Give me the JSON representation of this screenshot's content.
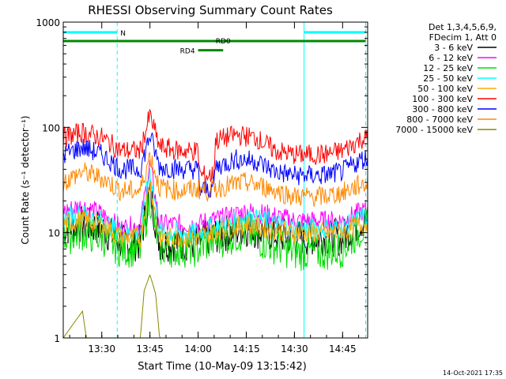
{
  "chart_data": {
    "type": "line",
    "title": "RHESSI Observing Summary Count Rates",
    "xlabel": "Start Time (10-May-09 13:15:42)",
    "ylabel": "Count Rate (s⁻¹ detector⁻¹)",
    "yscale": "log",
    "ylim": [
      1,
      1000
    ],
    "xlim_minutes": [
      13.3,
      14.88
    ],
    "x_unit": "hours (UT)",
    "x_ticks": [
      "13:30",
      "13:45",
      "14:00",
      "14:15",
      "14:30",
      "14:45"
    ],
    "x_tick_hours": [
      13.5,
      13.75,
      14.0,
      14.25,
      14.5,
      14.75
    ],
    "y_ticks": [
      "1",
      "10",
      "100",
      "1000"
    ],
    "y_tick_values": [
      1,
      10,
      100,
      1000
    ],
    "grid": false,
    "legend_position": "right",
    "legend_header": [
      "Det 1,3,4,5,6,9,",
      "FDecim 1, Att 0"
    ],
    "series": [
      {
        "name": "3 - 6 keV",
        "color": "#000000",
        "points": [
          [
            13.3,
            11
          ],
          [
            13.4,
            12
          ],
          [
            13.5,
            11
          ],
          [
            13.6,
            8
          ],
          [
            13.7,
            8
          ],
          [
            13.75,
            25
          ],
          [
            13.8,
            8
          ],
          [
            13.9,
            8
          ],
          [
            14.0,
            8
          ],
          [
            14.05,
            9
          ],
          [
            14.15,
            10
          ],
          [
            14.25,
            11
          ],
          [
            14.35,
            10
          ],
          [
            14.5,
            9
          ],
          [
            14.65,
            9
          ],
          [
            14.75,
            9
          ],
          [
            14.85,
            13
          ]
        ]
      },
      {
        "name": "6 - 12 keV",
        "color": "#ff00ff",
        "points": [
          [
            13.3,
            16
          ],
          [
            13.4,
            18
          ],
          [
            13.5,
            15
          ],
          [
            13.6,
            11
          ],
          [
            13.7,
            12
          ],
          [
            13.75,
            45
          ],
          [
            13.8,
            12
          ],
          [
            13.9,
            12
          ],
          [
            14.0,
            12
          ],
          [
            14.05,
            13
          ],
          [
            14.15,
            14
          ],
          [
            14.25,
            16
          ],
          [
            14.35,
            15
          ],
          [
            14.5,
            13
          ],
          [
            14.65,
            13
          ],
          [
            14.75,
            13
          ],
          [
            14.85,
            16
          ]
        ]
      },
      {
        "name": "12 - 25 keV",
        "color": "#00dd00",
        "points": [
          [
            13.3,
            9
          ],
          [
            13.4,
            10
          ],
          [
            13.5,
            9
          ],
          [
            13.6,
            7
          ],
          [
            13.7,
            7
          ],
          [
            13.75,
            22
          ],
          [
            13.8,
            7
          ],
          [
            13.9,
            7
          ],
          [
            14.0,
            7
          ],
          [
            14.05,
            8
          ],
          [
            14.15,
            9
          ],
          [
            14.25,
            10
          ],
          [
            14.35,
            8
          ],
          [
            14.5,
            6.5
          ],
          [
            14.65,
            6.5
          ],
          [
            14.75,
            7
          ],
          [
            14.85,
            11
          ]
        ]
      },
      {
        "name": "25 - 50 keV",
        "color": "#00ffff",
        "points": [
          [
            13.3,
            14
          ],
          [
            13.4,
            15
          ],
          [
            13.5,
            13
          ],
          [
            13.6,
            10
          ],
          [
            13.7,
            10
          ],
          [
            13.75,
            40
          ],
          [
            13.8,
            10
          ],
          [
            13.9,
            10
          ],
          [
            14.0,
            10
          ],
          [
            14.05,
            11
          ],
          [
            14.15,
            12
          ],
          [
            14.25,
            14
          ],
          [
            14.35,
            13
          ],
          [
            14.5,
            11
          ],
          [
            14.65,
            11
          ],
          [
            14.75,
            11
          ],
          [
            14.85,
            14
          ]
        ]
      },
      {
        "name": "50 - 100 keV",
        "color": "#ffaa00",
        "points": [
          [
            13.3,
            12
          ],
          [
            13.4,
            13
          ],
          [
            13.5,
            12
          ],
          [
            13.6,
            9
          ],
          [
            13.7,
            9
          ],
          [
            13.75,
            30
          ],
          [
            13.8,
            9
          ],
          [
            13.9,
            9
          ],
          [
            14.0,
            9
          ],
          [
            14.05,
            10
          ],
          [
            14.15,
            11
          ],
          [
            14.25,
            12
          ],
          [
            14.35,
            11
          ],
          [
            14.5,
            10
          ],
          [
            14.65,
            10
          ],
          [
            14.75,
            10
          ],
          [
            14.85,
            12
          ]
        ]
      },
      {
        "name": "100 - 300 keV",
        "color": "#ff0000",
        "points": [
          [
            13.3,
            80
          ],
          [
            13.4,
            90
          ],
          [
            13.5,
            80
          ],
          [
            13.6,
            60
          ],
          [
            13.7,
            60
          ],
          [
            13.75,
            130
          ],
          [
            13.8,
            65
          ],
          [
            13.9,
            60
          ],
          [
            14.0,
            60
          ],
          [
            14.01,
            35
          ],
          [
            14.08,
            35
          ],
          [
            14.09,
            75
          ],
          [
            14.2,
            85
          ],
          [
            14.3,
            80
          ],
          [
            14.4,
            60
          ],
          [
            14.5,
            55
          ],
          [
            14.65,
            55
          ],
          [
            14.75,
            60
          ],
          [
            14.85,
            78
          ]
        ]
      },
      {
        "name": "300 - 800 keV",
        "color": "#0000ff",
        "points": [
          [
            13.3,
            55
          ],
          [
            13.4,
            65
          ],
          [
            13.5,
            55
          ],
          [
            13.6,
            40
          ],
          [
            13.7,
            40
          ],
          [
            13.75,
            85
          ],
          [
            13.8,
            42
          ],
          [
            13.9,
            40
          ],
          [
            14.0,
            40
          ],
          [
            14.01,
            25
          ],
          [
            14.08,
            27
          ],
          [
            14.09,
            42
          ],
          [
            14.2,
            50
          ],
          [
            14.3,
            48
          ],
          [
            14.4,
            38
          ],
          [
            14.5,
            35
          ],
          [
            14.65,
            35
          ],
          [
            14.75,
            38
          ],
          [
            14.85,
            50
          ]
        ]
      },
      {
        "name": "800 - 7000 keV",
        "color": "#ff8800",
        "points": [
          [
            13.3,
            30
          ],
          [
            13.4,
            38
          ],
          [
            13.5,
            33
          ],
          [
            13.6,
            25
          ],
          [
            13.7,
            25
          ],
          [
            13.75,
            55
          ],
          [
            13.8,
            27
          ],
          [
            13.9,
            25
          ],
          [
            14.0,
            26
          ],
          [
            14.05,
            25
          ],
          [
            14.15,
            28
          ],
          [
            14.25,
            30
          ],
          [
            14.35,
            27
          ],
          [
            14.5,
            22
          ],
          [
            14.65,
            22
          ],
          [
            14.75,
            24
          ],
          [
            14.85,
            29
          ]
        ]
      },
      {
        "name": "7000 - 15000 keV",
        "color": "#888800",
        "points": [
          [
            13.3,
            1
          ],
          [
            13.4,
            1.8
          ],
          [
            13.42,
            1
          ],
          [
            13.55,
            1
          ],
          [
            13.7,
            1
          ],
          [
            13.72,
            2.8
          ],
          [
            13.75,
            4
          ],
          [
            13.78,
            2.6
          ],
          [
            13.8,
            1
          ],
          [
            14.85,
            1
          ]
        ]
      }
    ],
    "bars": [
      {
        "label": "N",
        "color": "#00ffff",
        "y": 800,
        "from": 13.3,
        "to": 13.58
      },
      {
        "label": "",
        "color": "#00ffff",
        "y": 800,
        "from": 14.55,
        "to": 14.87
      },
      {
        "label": "RD0",
        "color": "#008800",
        "y": 660,
        "from": 13.3,
        "to": 14.87
      },
      {
        "label": "RD4",
        "color": "#008800",
        "y": 540,
        "from": 14.0,
        "to": 14.13
      }
    ],
    "vlines": [
      {
        "x": 13.58,
        "color": "#00ffff",
        "style": "dashed"
      },
      {
        "x": 14.55,
        "color": "#00ffff",
        "style": "solid"
      },
      {
        "x": 14.87,
        "color": "#00ffff",
        "style": "dashed"
      }
    ]
  },
  "footer": {
    "timestamp": "14-Oct-2021 17:35"
  }
}
